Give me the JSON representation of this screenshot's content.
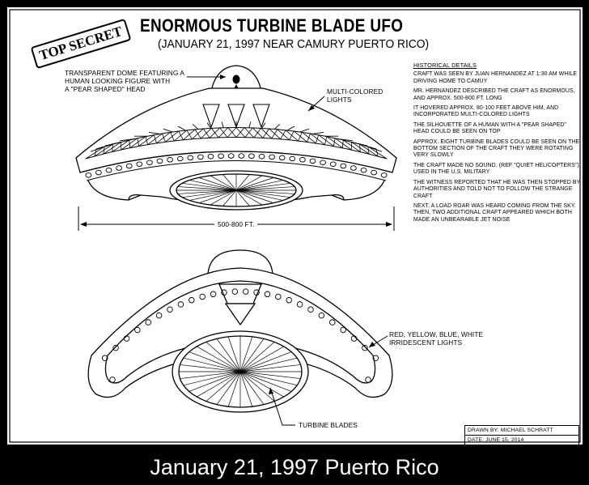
{
  "title": "ENORMOUS TURBINE BLADE UFO",
  "subtitle": "(JANUARY 21, 1997 NEAR CAMURY PUERTO RICO)",
  "stamp": "TOP SECRET",
  "labels": {
    "dome": [
      "TRANSPARENT DOME FEATURING A",
      "HUMAN LOOKING FIGURE WITH",
      "A \"PEAR SHAPED\" HEAD"
    ],
    "lights_top": [
      "MULTI-COLORED",
      "LIGHTS"
    ],
    "width": "500-800 FT.",
    "lights_bottom": [
      "RED, YELLOW, BLUE, WHITE",
      "IRRIDESCENT LIGHTS"
    ],
    "turbine": "TURBINE BLADES"
  },
  "notes": {
    "heading": "HISTORICAL DETAILS",
    "items": [
      "CRAFT WAS SEEN BY JUAN HERNANDEZ AT 1:30 AM WHILE DRIVING HOME TO CAMUY",
      "MR. HERNANDEZ DESCRIBED THE CRAFT AS ENORMOUS, AND APPROX. 500-800 FT. LONG",
      "IT HOVERED APPROX. 80-100 FEET ABOVE HIM, AND INCORPORATED MULTI-COLORED LIGHTS",
      "THE SILHOUETTE OF A HUMAN WITH A \"PEAR SHAPED\" HEAD COULD BE SEEN ON TOP",
      "APPROX. EIGHT TURBINE BLADES COULD BE SEEN ON THE BOTTOM SECTION OF THE CRAFT THEY WERE ROTATING VERY SLOWLY",
      "THE CRAFT MADE NO SOUND. (REF \"QUIET HELICOPTERS\") USED IN THE U.S. MILITARY",
      "THE WITNESS REPORTED THAT HE WAS THEN STOPPED BY AUTHORITIES AND TOLD NOT TO FOLLOW THE STRANGE CRAFT",
      "NEXT, A LOAD ROAR WAS HEARD COMING FROM THE SKY. THEN, TWO ADDITIONAL CRAFT APPEARED WHICH BOTH MADE AN UNBEARABLE JET NOISE"
    ]
  },
  "credits": {
    "drawn_by": "DRAWN BY: MICHAEL SCHRATT",
    "date": "DATE: JUNE 15, 2014"
  },
  "caption": "January 21, 1997 Puerto Rico"
}
